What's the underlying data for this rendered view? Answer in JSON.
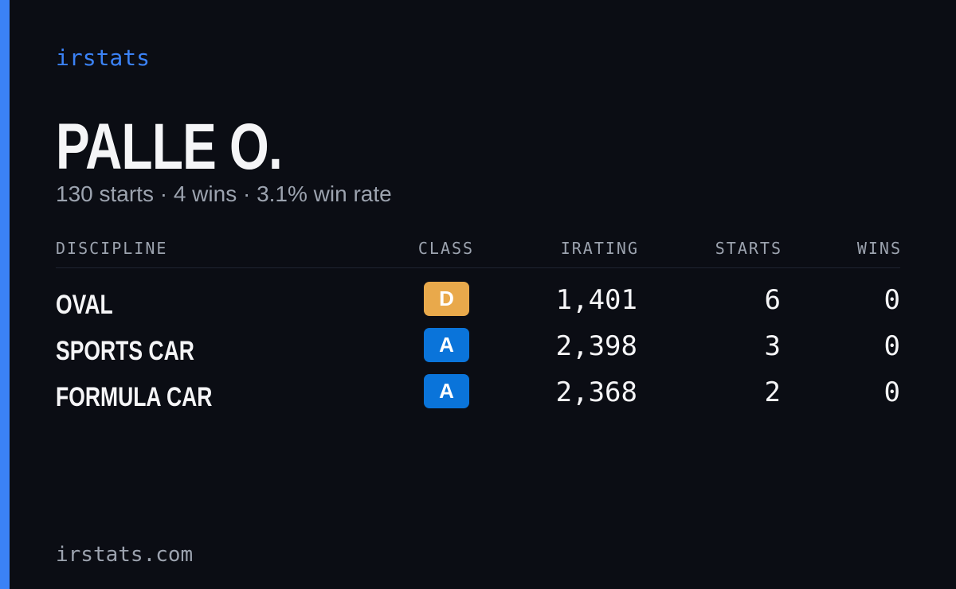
{
  "brand": "irstats",
  "name": "PALLE O.",
  "summary": "130 starts · 4 wins · 3.1% win rate",
  "table": {
    "headers": [
      "DISCIPLINE",
      "CLASS",
      "IRATING",
      "STARTS",
      "WINS"
    ],
    "rows": [
      [
        "OVAL",
        "D",
        "1,401",
        "6",
        "0"
      ],
      [
        "SPORTS CAR",
        "A",
        "2,398",
        "3",
        "0"
      ],
      [
        "FORMULA CAR",
        "A",
        "2,368",
        "2",
        "0"
      ]
    ]
  },
  "footer": "irstats.com"
}
